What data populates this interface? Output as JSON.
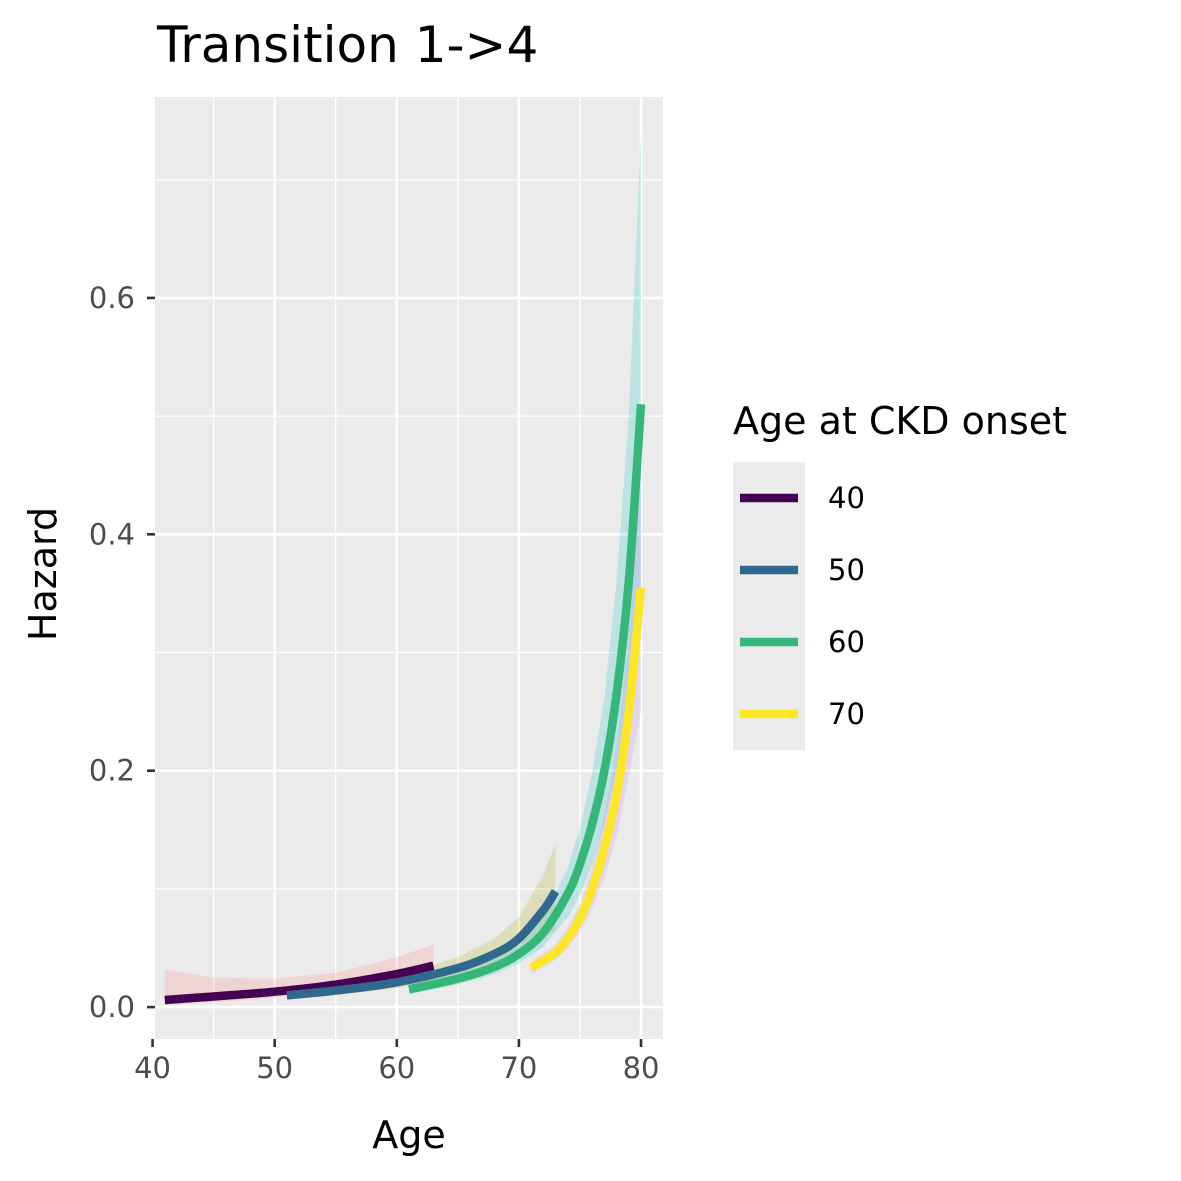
{
  "chart_data": {
    "type": "line",
    "title": "Transition 1->4",
    "xlabel": "Age",
    "ylabel": "Hazard",
    "xlim": [
      40.2,
      81.8
    ],
    "ylim": [
      -0.027,
      0.77
    ],
    "x_ticks": [
      40,
      50,
      60,
      70,
      80
    ],
    "x_tick_labels": [
      "40",
      "50",
      "60",
      "70",
      "80"
    ],
    "y_ticks": [
      0.0,
      0.2,
      0.4,
      0.6
    ],
    "y_tick_labels": [
      "0.0",
      "0.2",
      "0.4",
      "0.6"
    ],
    "grid": true,
    "panel_background": "#ebebeb",
    "legend": {
      "title": "Age at CKD onset",
      "placement": "right"
    },
    "series": [
      {
        "name": "40",
        "color": "#440154",
        "ribbon_color": "#f8766d",
        "x": [
          41,
          45,
          50,
          55,
          60,
          63
        ],
        "y": [
          0.006,
          0.009,
          0.013,
          0.019,
          0.028,
          0.035
        ],
        "lower": [
          0.002,
          0.004,
          0.008,
          0.013,
          0.018,
          0.02
        ],
        "upper": [
          0.032,
          0.025,
          0.024,
          0.029,
          0.042,
          0.053
        ]
      },
      {
        "name": "50",
        "color": "#31688e",
        "ribbon_color": "#a3a500",
        "x": [
          51,
          55,
          60,
          65,
          68,
          70,
          72,
          73
        ],
        "y": [
          0.01,
          0.014,
          0.021,
          0.033,
          0.045,
          0.058,
          0.082,
          0.098
        ],
        "lower": [
          0.006,
          0.01,
          0.016,
          0.026,
          0.035,
          0.043,
          0.058,
          0.065
        ],
        "upper": [
          0.014,
          0.019,
          0.027,
          0.042,
          0.058,
          0.076,
          0.112,
          0.138
        ]
      },
      {
        "name": "60",
        "color": "#35b779",
        "ribbon_color": "#00bfc4",
        "x": [
          61,
          65,
          68,
          70,
          72,
          74,
          75,
          76,
          77,
          78,
          79,
          80
        ],
        "y": [
          0.015,
          0.024,
          0.034,
          0.045,
          0.063,
          0.096,
          0.121,
          0.155,
          0.2,
          0.265,
          0.36,
          0.51
        ],
        "lower": [
          0.011,
          0.019,
          0.028,
          0.037,
          0.051,
          0.076,
          0.095,
          0.12,
          0.155,
          0.2,
          0.26,
          0.33
        ],
        "upper": [
          0.019,
          0.029,
          0.041,
          0.054,
          0.076,
          0.118,
          0.152,
          0.198,
          0.262,
          0.36,
          0.5,
          0.74
        ]
      },
      {
        "name": "70",
        "color": "#fde725",
        "ribbon_color": "#c77cff",
        "x": [
          71,
          73,
          74,
          75,
          76,
          77,
          78,
          79,
          80
        ],
        "y": [
          0.033,
          0.046,
          0.058,
          0.075,
          0.1,
          0.135,
          0.18,
          0.25,
          0.355
        ],
        "lower": [
          0.028,
          0.04,
          0.05,
          0.064,
          0.084,
          0.11,
          0.145,
          0.195,
          0.25
        ],
        "upper": [
          0.038,
          0.053,
          0.067,
          0.087,
          0.118,
          0.162,
          0.22,
          0.31,
          0.46
        ]
      }
    ]
  }
}
